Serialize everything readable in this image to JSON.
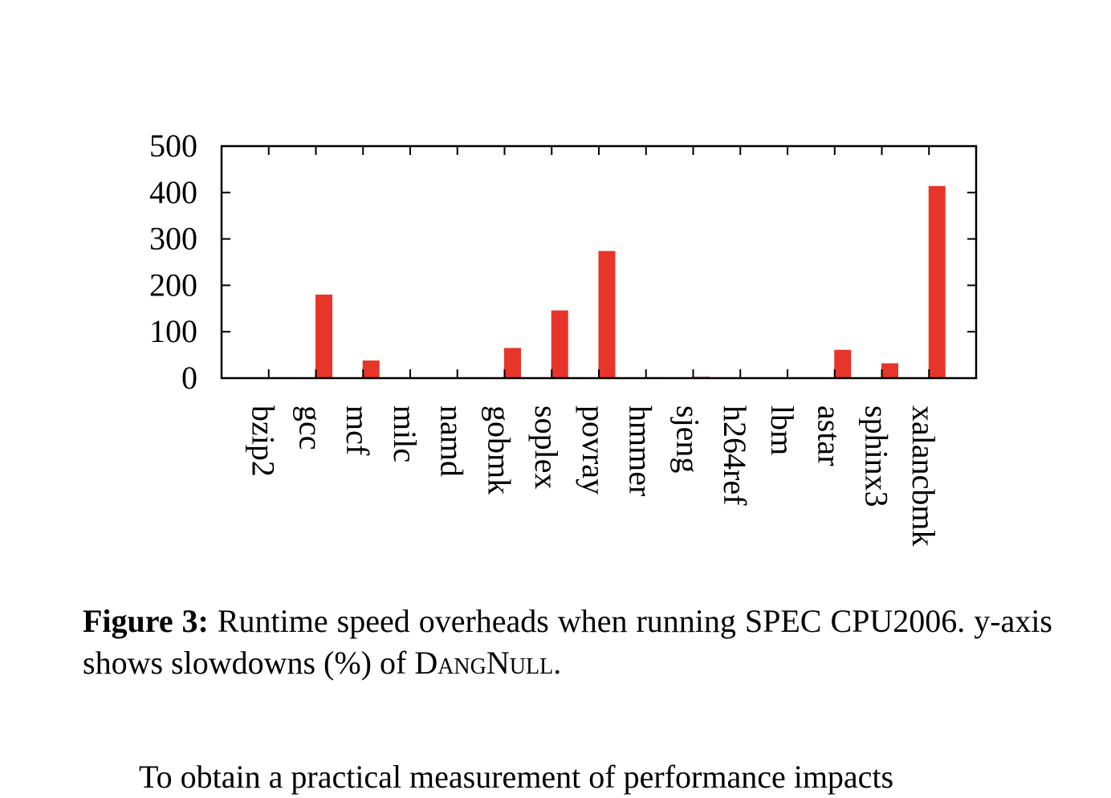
{
  "chart_data": {
    "type": "bar",
    "categories": [
      "bzip2",
      "gcc",
      "mcf",
      "milc",
      "namd",
      "gobmk",
      "soplex",
      "povray",
      "hmmer",
      "sjeng",
      "h264ref",
      "lbm",
      "astar",
      "sphinx3",
      "xalancbmk"
    ],
    "values": [
      0,
      180,
      38,
      0,
      0,
      65,
      146,
      274,
      2,
      3,
      0,
      0,
      61,
      32,
      414
    ],
    "ylim": [
      0,
      500
    ],
    "yticks": [
      0,
      100,
      200,
      300,
      400,
      500
    ],
    "ytick_labels": [
      "0",
      "100",
      "200",
      "300",
      "400",
      "500"
    ],
    "bar_color": "#e8352a",
    "title": "",
    "xlabel": "",
    "ylabel": "",
    "grid": false,
    "legend": false
  },
  "caption": {
    "label": "Figure 3:",
    "text_before": "Runtime speed overheads when running SPEC CPU2006. y-axis shows slowdowns (%) of",
    "name": "DangNull",
    "text_after": "."
  },
  "body_text": {
    "line1": "To obtain a practical measurement of performance impacts"
  }
}
